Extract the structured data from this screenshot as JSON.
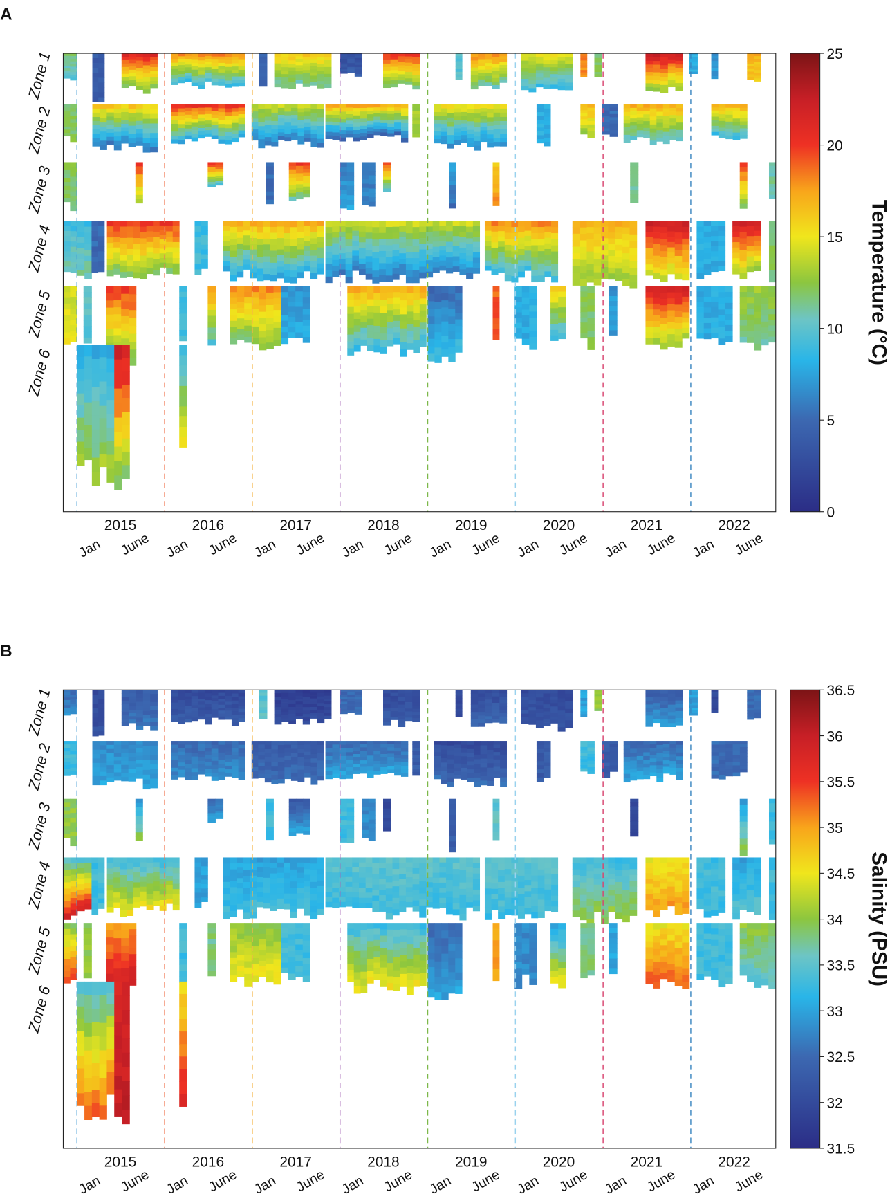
{
  "chart_data": [
    {
      "panel_label": "A",
      "type": "heatmap",
      "variable": "temp",
      "colorbar_label": "Temperature (°C)",
      "colorbar_range": [
        0,
        25
      ],
      "colorbar_ticks": [
        "0",
        "5",
        "10",
        "15",
        "20",
        "25"
      ]
    },
    {
      "panel_label": "B",
      "type": "heatmap",
      "variable": "sal",
      "colorbar_label": "Salinity (PSU)",
      "colorbar_range": [
        31.5,
        36.5
      ],
      "colorbar_ticks": [
        "31.5",
        "32",
        "32.5",
        "33",
        "33.5",
        "34",
        "34.5",
        "35",
        "35.5",
        "36",
        "36.5"
      ]
    }
  ],
  "axis": {
    "time_unit": "months since Oct 2014",
    "xlim": [
      -1.9,
      95.6
    ],
    "year_labels": [
      "2015",
      "2016",
      "2017",
      "2018",
      "2019",
      "2020",
      "2021",
      "2022"
    ],
    "month_labels": [
      "Jan",
      "June"
    ],
    "year_boundary_colors": [
      "#4a9fd6",
      "#f07a55",
      "#f5b548",
      "#a565b5",
      "#7db84a",
      "#9ad2ee",
      "#d8436f",
      "#3a86c0"
    ]
  },
  "zones": [
    {
      "label": "Zone 1",
      "segments": [
        [
          -1.9,
          0,
          0.75,
          12,
          10,
          32.5,
          32.8
        ],
        [
          2.1,
          3.75,
          1.3,
          4,
          4,
          32,
          32.1
        ],
        [
          6.1,
          11,
          1.1,
          21,
          12,
          32.3,
          32.6
        ],
        [
          12.9,
          23,
          0.95,
          18,
          9,
          32,
          32.3
        ],
        [
          24.9,
          26,
          0.9,
          5,
          5,
          33.5,
          33.5
        ],
        [
          27,
          34.8,
          0.95,
          16,
          11,
          31.8,
          32
        ],
        [
          36,
          39,
          0.65,
          3,
          4,
          32.5,
          32.5
        ],
        [
          41.9,
          46.9,
          1,
          20,
          12,
          32,
          32.3
        ],
        [
          51.8,
          52.7,
          0.8,
          10,
          10,
          32,
          32
        ],
        [
          53.9,
          58.8,
          1,
          18,
          11,
          32,
          32.5
        ],
        [
          60.8,
          67.8,
          1.1,
          15,
          9,
          32,
          32.2
        ],
        [
          68.9,
          69.8,
          0.8,
          18,
          18,
          33,
          33
        ],
        [
          70.8,
          71.8,
          0.7,
          12,
          12,
          34,
          34
        ],
        [
          77.8,
          82.9,
          1.1,
          22,
          13,
          32.3,
          33
        ],
        [
          83.8,
          84.9,
          0.7,
          8,
          8,
          33,
          33
        ],
        [
          86.8,
          87.7,
          0.7,
          7,
          7,
          32,
          32
        ],
        [
          91.7,
          93.6,
          0.8,
          17,
          16,
          32.5,
          32.5
        ]
      ]
    },
    {
      "label": "Zone 2",
      "segments": [
        [
          -1.9,
          0,
          0.85,
          12,
          12,
          33.3,
          33.3
        ],
        [
          2.1,
          11,
          1.05,
          16,
          6,
          32.8,
          33
        ],
        [
          12.9,
          23,
          0.9,
          20,
          8,
          32.5,
          32.8
        ],
        [
          23.9,
          33.8,
          0.95,
          14,
          6,
          32.3,
          32.5
        ],
        [
          34,
          45.3,
          0.85,
          17,
          5,
          32.5,
          33
        ],
        [
          45.9,
          46.9,
          0.8,
          13,
          13,
          32.3,
          32.3
        ],
        [
          48.9,
          58.8,
          1,
          15,
          7,
          32,
          32.5
        ],
        [
          62.9,
          64.8,
          0.95,
          8,
          8,
          32.3,
          32.3
        ],
        [
          68.9,
          70.8,
          0.8,
          17,
          13,
          33.3,
          33.3
        ],
        [
          71.8,
          74,
          0.8,
          5,
          5,
          32.3,
          32.3
        ],
        [
          74.8,
          82.9,
          0.9,
          17,
          10,
          32.5,
          33
        ],
        [
          86.8,
          91.7,
          0.85,
          17,
          9,
          32.5,
          32.5
        ]
      ]
    },
    {
      "label": "Zone 3",
      "segments": [
        [
          -1.9,
          0,
          1,
          12,
          12,
          34,
          34
        ],
        [
          8,
          9,
          1,
          20,
          13,
          33,
          34
        ],
        [
          17.9,
          20,
          0.5,
          20,
          10,
          32.5,
          33
        ],
        [
          25.9,
          26.9,
          1,
          5,
          5,
          33.3,
          33.3
        ],
        [
          29,
          31.9,
          0.85,
          20,
          11,
          32.3,
          33
        ],
        [
          36,
          37.9,
          1,
          6,
          8,
          33.3,
          33.3
        ],
        [
          39,
          40.8,
          0.95,
          6,
          6,
          32.8,
          32.8
        ],
        [
          41.9,
          42.9,
          0.7,
          20,
          10,
          32,
          32
        ],
        [
          50.9,
          51.8,
          1.2,
          8,
          5,
          32.3,
          32.3
        ],
        [
          56.9,
          57.8,
          1.05,
          16,
          18,
          33.5,
          33.5
        ],
        [
          75.7,
          76.8,
          0.9,
          11,
          11,
          32,
          32
        ],
        [
          90.7,
          91.7,
          1.2,
          20,
          12,
          33,
          34
        ],
        [
          94.7,
          95.6,
          0.95,
          11,
          11,
          33.3,
          33.3
        ]
      ]
    },
    {
      "label": "Zone 4",
      "segments": [
        [
          -1.9,
          2,
          1,
          9,
          11,
          33.5,
          35.8
        ],
        [
          2,
          3.75,
          1,
          5,
          5,
          33.3,
          33.3
        ],
        [
          4.1,
          14,
          0.95,
          20,
          12,
          33.3,
          34.5
        ],
        [
          16.1,
          17.9,
          0.9,
          9,
          9,
          33,
          33
        ],
        [
          20,
          33.8,
          1,
          17,
          8,
          33,
          33.3
        ],
        [
          34,
          55.1,
          1,
          14,
          6,
          33.5,
          33.3
        ],
        [
          55.8,
          65.8,
          1,
          18,
          9,
          33.5,
          33.3
        ],
        [
          67.8,
          76.6,
          1.1,
          17,
          13,
          33.3,
          34
        ],
        [
          77.8,
          83.8,
          1,
          22,
          14,
          34.5,
          35
        ],
        [
          84.8,
          88.7,
          1,
          8,
          8,
          33.3,
          33.3
        ],
        [
          89.7,
          93.6,
          1,
          22,
          13,
          33,
          33.5
        ],
        [
          94.7,
          95.6,
          1,
          12,
          12,
          33.3,
          33.3
        ]
      ]
    },
    {
      "label": "Zone 5",
      "segments": [
        [
          -1.9,
          0,
          1,
          14,
          15,
          34,
          35.5
        ],
        [
          0.9,
          2,
          1,
          10,
          10,
          34,
          34
        ],
        [
          4,
          8.1,
          1.2,
          20,
          12,
          35,
          36
        ],
        [
          14,
          15,
          1,
          9,
          9,
          33.3,
          33.3
        ],
        [
          17.9,
          19,
          1,
          18,
          10,
          33.8,
          33.8
        ],
        [
          20.9,
          27.9,
          1,
          18,
          12,
          34,
          34.5
        ],
        [
          27.9,
          31.9,
          0.9,
          7,
          8,
          33.3,
          33.3
        ],
        [
          37,
          47.8,
          1.1,
          17,
          9,
          33.3,
          34.5
        ],
        [
          48,
          52.7,
          1.2,
          5,
          9,
          32.5,
          33
        ],
        [
          56.9,
          57.8,
          1,
          19,
          19,
          35,
          35
        ],
        [
          59.9,
          62.9,
          1,
          8,
          8,
          32.8,
          32.8
        ],
        [
          64.8,
          66.9,
          1,
          16,
          9,
          33,
          34.5
        ],
        [
          68.9,
          70.8,
          1,
          12,
          12,
          33.8,
          33.8
        ],
        [
          72.8,
          73.9,
          0.8,
          7,
          7,
          33,
          33
        ],
        [
          77.8,
          83.8,
          1,
          22,
          13,
          34.5,
          35.3
        ],
        [
          84.8,
          89.7,
          1,
          8,
          8,
          33.3,
          33.3
        ],
        [
          90.7,
          95.6,
          1,
          13,
          11,
          34,
          33.5
        ]
      ]
    },
    {
      "label": "Zone 6",
      "segments": [
        [
          0,
          5.1,
          0.85,
          8,
          13,
          33.5,
          35.3
        ],
        [
          5.1,
          7.2,
          0.9,
          22,
          12,
          35.8,
          36
        ],
        [
          14,
          15,
          0.75,
          9,
          15,
          34.5,
          35.8
        ]
      ]
    }
  ],
  "segment_fields": [
    "start_month",
    "end_month",
    "relative_depth",
    "top_temp",
    "bottom_temp",
    "top_sal",
    "bottom_sal"
  ]
}
